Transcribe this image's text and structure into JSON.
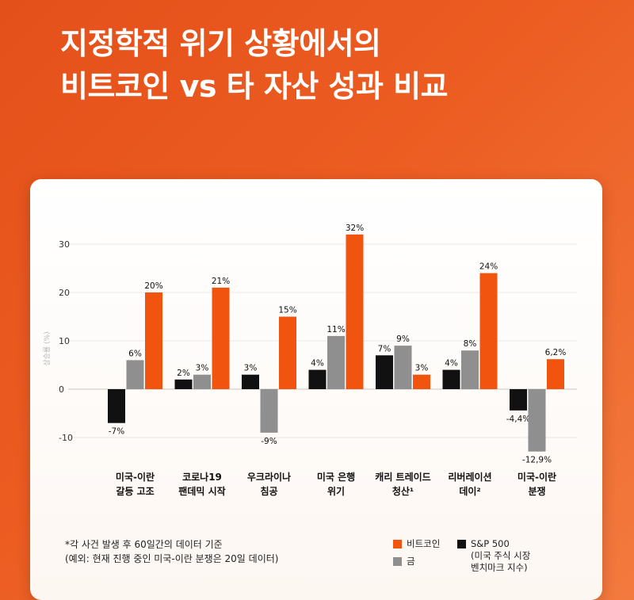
{
  "title": {
    "line1": "지정학적 위기 상황에서의",
    "line2": "비트코인 vs 타 자산 성과 비교"
  },
  "colors": {
    "background": "#e8541c",
    "bitcoin": "#f0540f",
    "gold": "#8f8f8f",
    "sp500": "#111111"
  },
  "chart_data": {
    "type": "bar",
    "ylabel": "상승률 (%)",
    "ylim": [
      -10,
      30
    ],
    "yticks": [
      30,
      20,
      10,
      0,
      -10
    ],
    "grid": true,
    "categories": [
      [
        "미국-이란",
        "갈등 고조"
      ],
      [
        "코로나19",
        "팬데믹 시작"
      ],
      [
        "우크라이나",
        "침공"
      ],
      [
        "미국 은행",
        "위기"
      ],
      [
        "캐리 트레이드",
        "청산¹"
      ],
      [
        "리버레이션",
        "데이²"
      ],
      [
        "미국-이란",
        "분쟁"
      ]
    ],
    "series": [
      {
        "name": "S&P 500",
        "key": "sp500",
        "values": [
          -7,
          2,
          3,
          4,
          7,
          4,
          -4.4
        ],
        "labels": [
          "-7%",
          "2%",
          "3%",
          "4%",
          "7%",
          "4%",
          "-4,4%"
        ]
      },
      {
        "name": "금",
        "key": "gold",
        "values": [
          6,
          3,
          -9,
          11,
          9,
          8,
          -12.9
        ],
        "labels": [
          "6%",
          "3%",
          "-9%",
          "11%",
          "9%",
          "8%",
          "-12,9%"
        ]
      },
      {
        "name": "비트코인",
        "key": "bitcoin",
        "values": [
          20,
          21,
          15,
          32,
          3,
          24,
          6.2
        ],
        "labels": [
          "20%",
          "21%",
          "15%",
          "32%",
          "3%",
          "24%",
          "6,2%"
        ]
      }
    ]
  },
  "footnote": {
    "line1": "*각 사건 발생 후 60일간의 데이터 기준",
    "line2": "(예외: 현재 진행 중인 미국-이란 분쟁은 20일 데이터)"
  },
  "legend": {
    "bitcoin": "비트코인",
    "gold": "금",
    "sp500": "S&P 500",
    "sp500_note1": "(미국 주식 시장",
    "sp500_note2": "벤치마크 지수)"
  }
}
